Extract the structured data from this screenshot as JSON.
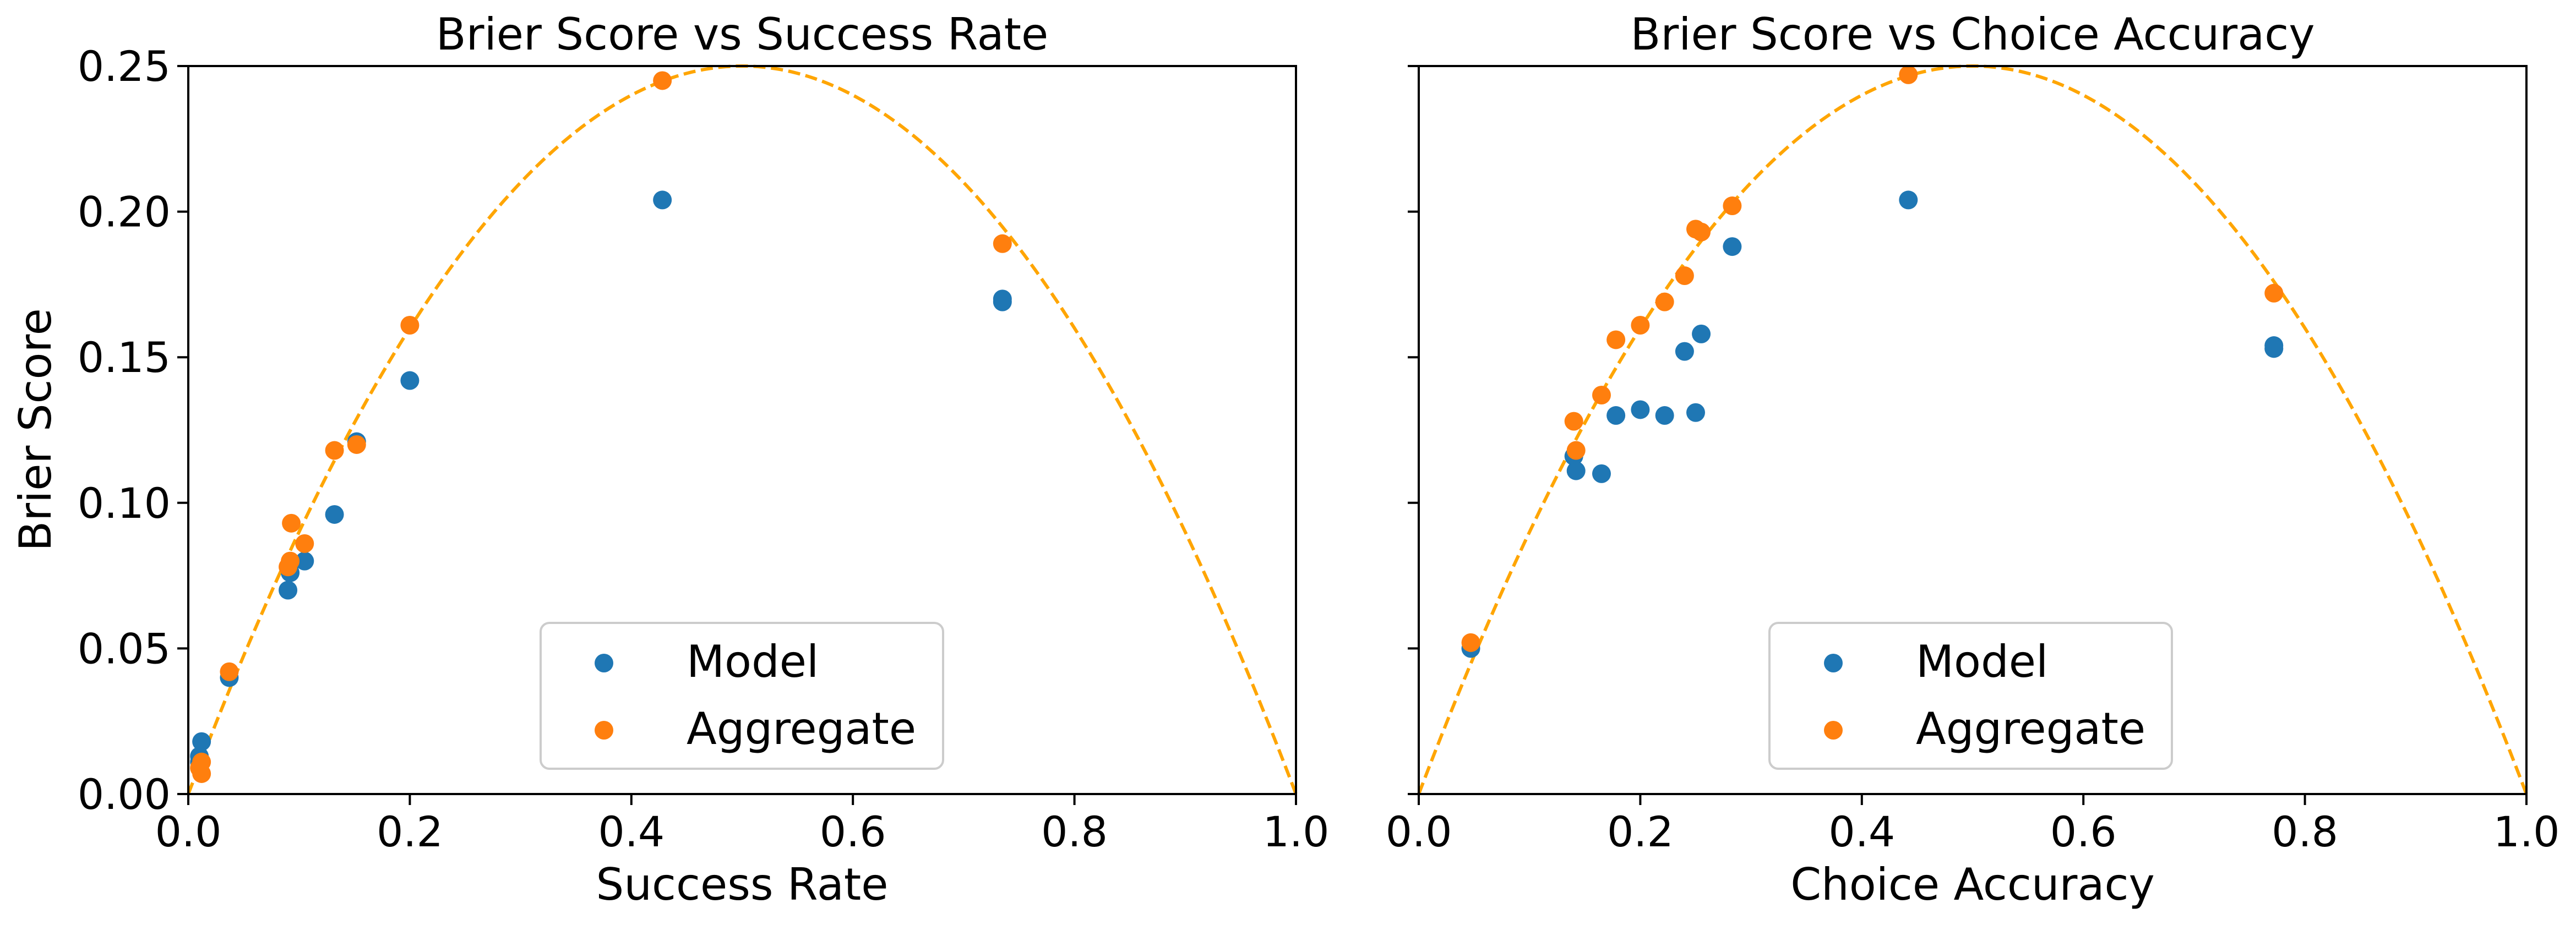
{
  "colors": {
    "model": "#1f77b4",
    "aggregate": "#ff7f0e",
    "curve": "#ffa500"
  },
  "chart_data": [
    {
      "type": "scatter",
      "title": "Brier Score vs Success Rate",
      "xlabel": "Success Rate",
      "ylabel": "Brier Score",
      "xlim": [
        0,
        1
      ],
      "ylim": [
        0,
        0.25
      ],
      "xticks": [
        0,
        0.2,
        0.4,
        0.6,
        0.8,
        1.0
      ],
      "xtick_labels": [
        "0.0",
        "0.2",
        "0.4",
        "0.6",
        "0.8",
        "1.0"
      ],
      "yticks": [
        0,
        0.05,
        0.1,
        0.15,
        0.2,
        0.25
      ],
      "ytick_labels": [
        "0.00",
        "0.05",
        "0.10",
        "0.15",
        "0.20",
        "0.25"
      ],
      "reference_curve": "p(1-p)",
      "legend": [
        "Model",
        "Aggregate"
      ],
      "legend_location": "lower center",
      "series": [
        {
          "name": "Model",
          "points": [
            [
              0.012,
              0.018
            ],
            [
              0.01,
              0.013
            ],
            [
              0.01,
              0.011
            ],
            [
              0.037,
              0.04
            ],
            [
              0.09,
              0.07
            ],
            [
              0.092,
              0.076
            ],
            [
              0.105,
              0.08
            ],
            [
              0.132,
              0.096
            ],
            [
              0.152,
              0.121
            ],
            [
              0.2,
              0.142
            ],
            [
              0.428,
              0.204
            ],
            [
              0.735,
              0.17
            ],
            [
              0.735,
              0.169
            ]
          ]
        },
        {
          "name": "Aggregate",
          "points": [
            [
              0.012,
              0.007
            ],
            [
              0.01,
              0.009
            ],
            [
              0.012,
              0.011
            ],
            [
              0.037,
              0.042
            ],
            [
              0.092,
              0.08
            ],
            [
              0.093,
              0.093
            ],
            [
              0.09,
              0.078
            ],
            [
              0.105,
              0.086
            ],
            [
              0.132,
              0.118
            ],
            [
              0.152,
              0.12
            ],
            [
              0.2,
              0.161
            ],
            [
              0.428,
              0.245
            ],
            [
              0.735,
              0.189
            ]
          ]
        }
      ]
    },
    {
      "type": "scatter",
      "title": "Brier Score vs Choice Accuracy",
      "xlabel": "Choice Accuracy",
      "ylabel": "",
      "xlim": [
        0,
        1
      ],
      "ylim": [
        0,
        0.25
      ],
      "xticks": [
        0,
        0.2,
        0.4,
        0.6,
        0.8,
        1.0
      ],
      "xtick_labels": [
        "0.0",
        "0.2",
        "0.4",
        "0.6",
        "0.8",
        "1.0"
      ],
      "reference_curve": "p(1-p)",
      "legend": [
        "Model",
        "Aggregate"
      ],
      "legend_location": "lower center",
      "series": [
        {
          "name": "Model",
          "points": [
            [
              0.047,
              0.05
            ],
            [
              0.14,
              0.116
            ],
            [
              0.142,
              0.111
            ],
            [
              0.165,
              0.11
            ],
            [
              0.178,
              0.13
            ],
            [
              0.2,
              0.132
            ],
            [
              0.222,
              0.13
            ],
            [
              0.24,
              0.152
            ],
            [
              0.25,
              0.131
            ],
            [
              0.255,
              0.158
            ],
            [
              0.283,
              0.188
            ],
            [
              0.442,
              0.204
            ],
            [
              0.772,
              0.154
            ],
            [
              0.772,
              0.153
            ]
          ]
        },
        {
          "name": "Aggregate",
          "points": [
            [
              0.047,
              0.052
            ],
            [
              0.14,
              0.128
            ],
            [
              0.142,
              0.118
            ],
            [
              0.165,
              0.137
            ],
            [
              0.178,
              0.156
            ],
            [
              0.2,
              0.161
            ],
            [
              0.222,
              0.169
            ],
            [
              0.24,
              0.178
            ],
            [
              0.25,
              0.194
            ],
            [
              0.255,
              0.193
            ],
            [
              0.283,
              0.202
            ],
            [
              0.442,
              0.247
            ],
            [
              0.772,
              0.172
            ]
          ]
        }
      ]
    }
  ]
}
